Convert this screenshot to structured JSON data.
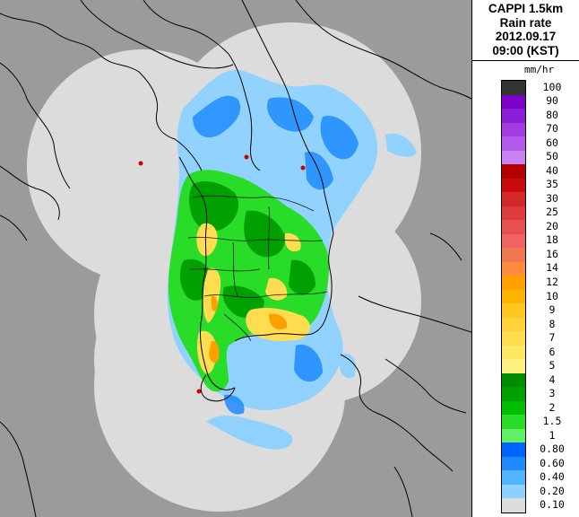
{
  "title": {
    "line1": "CAPPI 1.5km",
    "line2": "Rain rate",
    "line3": "2012.09.17",
    "line4": "09:00 (KST)"
  },
  "legend": {
    "unit": "mm/hr",
    "levels": [
      {
        "label": "100",
        "color": "#333333"
      },
      {
        "label": "90",
        "color": "#7c00c8"
      },
      {
        "label": "80",
        "color": "#8c1ed8"
      },
      {
        "label": "70",
        "color": "#a03ce0"
      },
      {
        "label": "60",
        "color": "#b45aea"
      },
      {
        "label": "50",
        "color": "#c882f2"
      },
      {
        "label": "40",
        "color": "#b40000"
      },
      {
        "label": "35",
        "color": "#c80a0a"
      },
      {
        "label": "30",
        "color": "#d22828"
      },
      {
        "label": "25",
        "color": "#dc3c3c"
      },
      {
        "label": "20",
        "color": "#e65050"
      },
      {
        "label": "18",
        "color": "#f06464"
      },
      {
        "label": "16",
        "color": "#f07850"
      },
      {
        "label": "14",
        "color": "#ff8c3c"
      },
      {
        "label": "12",
        "color": "#ffa000"
      },
      {
        "label": "10",
        "color": "#ffb400"
      },
      {
        "label": "9",
        "color": "#ffc81e"
      },
      {
        "label": "8",
        "color": "#ffd23c"
      },
      {
        "label": "7",
        "color": "#ffdc50"
      },
      {
        "label": "6",
        "color": "#ffe664"
      },
      {
        "label": "5",
        "color": "#fff082"
      },
      {
        "label": "4",
        "color": "#008c00"
      },
      {
        "label": "3",
        "color": "#00a000"
      },
      {
        "label": "2",
        "color": "#00be00"
      },
      {
        "label": "1.5",
        "color": "#28dc28"
      },
      {
        "label": "1",
        "color": "#64f064"
      },
      {
        "label": "0.80",
        "color": "#0064ff"
      },
      {
        "label": "0.60",
        "color": "#1e8cff"
      },
      {
        "label": "0.40",
        "color": "#50b4ff"
      },
      {
        "label": "0.20",
        "color": "#8cd2ff"
      },
      {
        "label": "0.10",
        "color": "#dcdcdc"
      }
    ]
  },
  "map": {
    "background_color": "#9b9b9b",
    "radar_coverage_color": "#dcdcdc",
    "station_marker_color": "#cc0000",
    "coastline_color": "#000000"
  }
}
